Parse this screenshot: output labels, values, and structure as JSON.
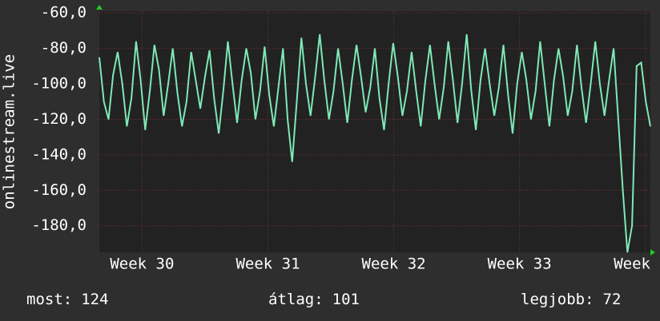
{
  "chart_data": {
    "type": "line",
    "ylabel": "onlinestream.live",
    "ylim": [
      -195,
      -59
    ],
    "yticks": [
      {
        "value": -60,
        "label": "-60,0"
      },
      {
        "value": -80,
        "label": "-80,0"
      },
      {
        "value": -100,
        "label": "-100,0"
      },
      {
        "value": -120,
        "label": "-120,0"
      },
      {
        "value": -140,
        "label": "-140,0"
      },
      {
        "value": -160,
        "label": "-160,0"
      },
      {
        "value": -180,
        "label": "-180,0"
      }
    ],
    "xlim": [
      29.66,
      34.04
    ],
    "xticks": [
      {
        "value": 30,
        "label": "Week 30"
      },
      {
        "value": 31,
        "label": "Week 31"
      },
      {
        "value": 32,
        "label": "Week 32"
      },
      {
        "value": 33,
        "label": "Week 33"
      },
      {
        "value": 34,
        "label": "Week"
      }
    ],
    "grid": true,
    "color": "#7ee8b6",
    "values": [
      -85,
      -110,
      -120,
      -95,
      -82,
      -100,
      -124,
      -108,
      -76,
      -98,
      -126,
      -104,
      -78,
      -92,
      -118,
      -100,
      -80,
      -105,
      -124,
      -110,
      -82,
      -98,
      -114,
      -96,
      -81,
      -108,
      -128,
      -104,
      -76,
      -100,
      -122,
      -98,
      -80,
      -94,
      -120,
      -104,
      -79,
      -106,
      -124,
      -102,
      -80,
      -120,
      -144,
      -110,
      -74,
      -100,
      -118,
      -96,
      -72,
      -98,
      -120,
      -104,
      -80,
      -100,
      -122,
      -98,
      -78,
      -96,
      -116,
      -102,
      -80,
      -108,
      -126,
      -100,
      -77,
      -96,
      -118,
      -104,
      -82,
      -104,
      -124,
      -98,
      -78,
      -100,
      -120,
      -102,
      -76,
      -98,
      -122,
      -100,
      -72,
      -104,
      -126,
      -98,
      -80,
      -100,
      -118,
      -102,
      -78,
      -106,
      -128,
      -100,
      -82,
      -98,
      -120,
      -104,
      -76,
      -100,
      -124,
      -98,
      -80,
      -96,
      -118,
      -104,
      -78,
      -102,
      -122,
      -100,
      -76,
      -100,
      -118,
      -98,
      -80,
      -120,
      -160,
      -195,
      -180,
      -90,
      -88,
      -110,
      -124
    ],
    "stats": [
      {
        "label": "most:",
        "value": 124
      },
      {
        "label": "átlag:",
        "value": 101
      },
      {
        "label": "legjobb:",
        "value": 72
      }
    ]
  }
}
